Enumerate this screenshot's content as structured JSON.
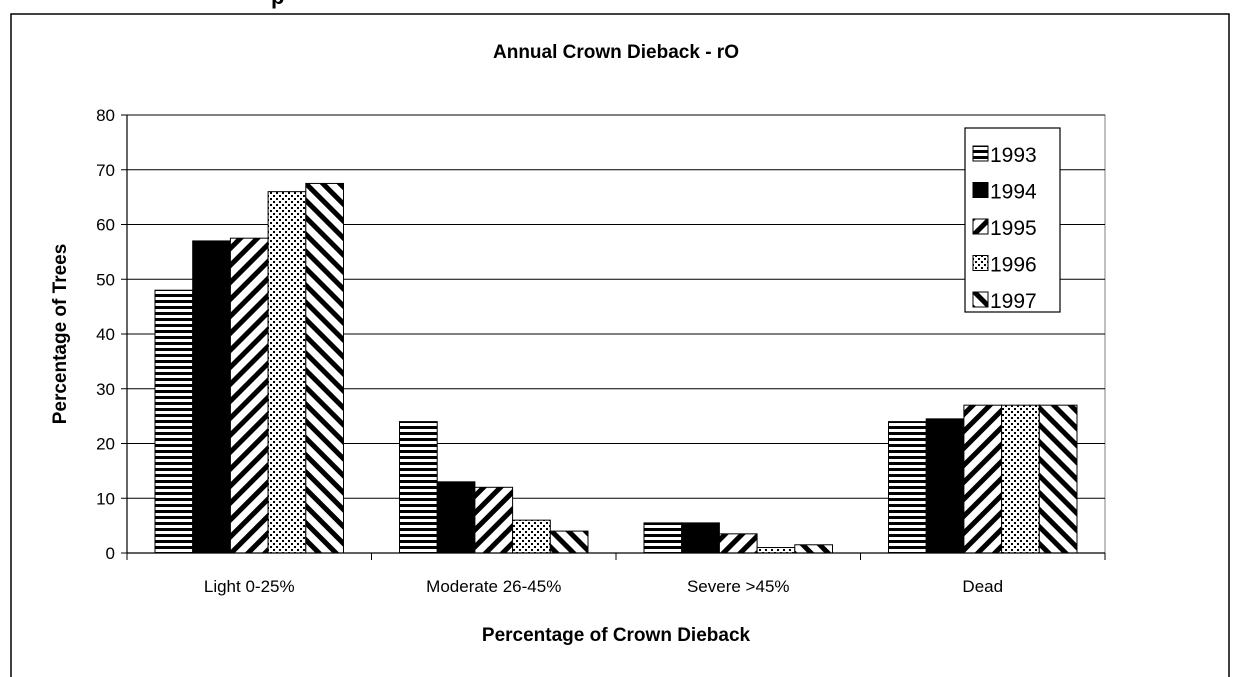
{
  "header_fragment": "p",
  "chart_data": {
    "type": "bar",
    "title": "Annual Crown Dieback - rO",
    "xlabel": "Percentage of Crown Dieback",
    "ylabel": "Percentage of Trees",
    "ylim": [
      0,
      80
    ],
    "yticks": [
      "0",
      "10",
      "20",
      "30",
      "40",
      "50",
      "60",
      "70",
      "80"
    ],
    "categories": [
      "Light 0-25%",
      "Moderate 26-45%",
      "Severe >45%",
      "Dead"
    ],
    "series": [
      {
        "name": "1993",
        "pattern": "horizontal-stripes",
        "values": [
          48,
          24,
          5.5,
          24
        ]
      },
      {
        "name": "1994",
        "pattern": "solid-black",
        "values": [
          57,
          13,
          5.5,
          24.5
        ]
      },
      {
        "name": "1995",
        "pattern": "diagonal-stripes-down",
        "values": [
          57.5,
          12,
          3.5,
          27
        ]
      },
      {
        "name": "1996",
        "pattern": "dots",
        "values": [
          66,
          6,
          1,
          27
        ]
      },
      {
        "name": "1997",
        "pattern": "diagonal-stripes-up",
        "values": [
          67.5,
          4,
          1.5,
          27
        ]
      }
    ],
    "grid": true,
    "legend_position": "top-right"
  }
}
